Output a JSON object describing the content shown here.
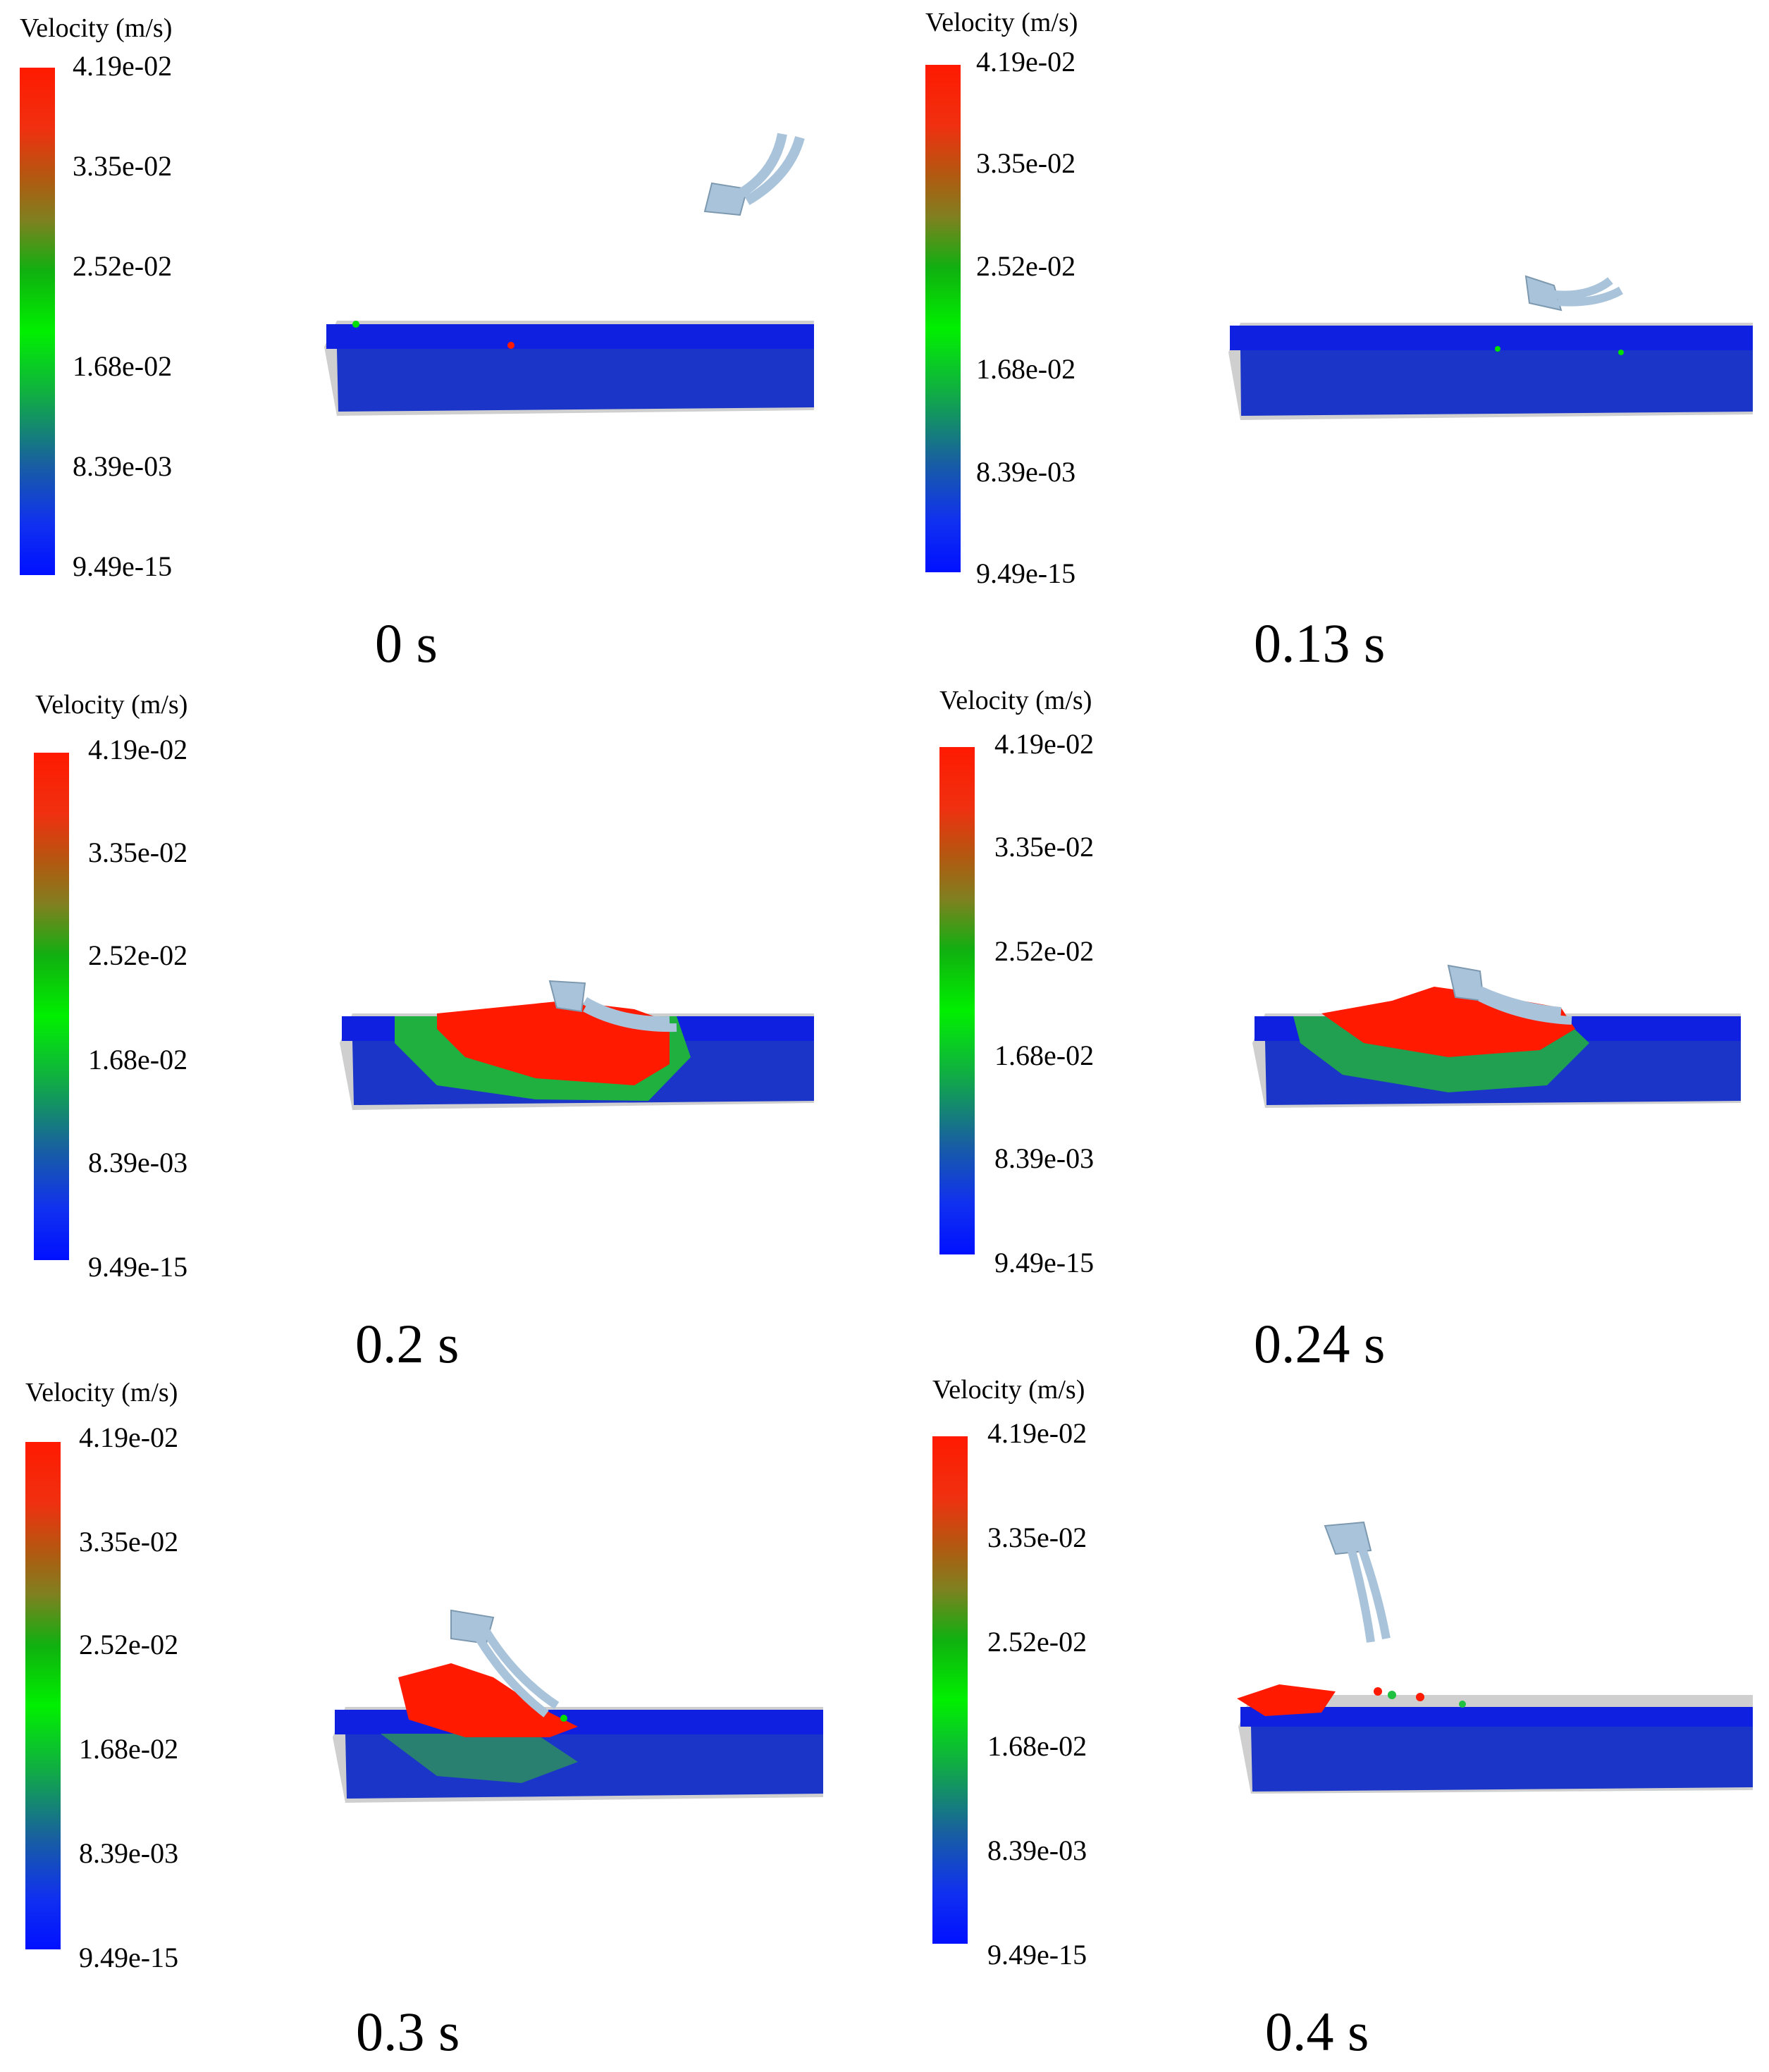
{
  "legend": {
    "title": "Velocity (m/s)",
    "ticks": [
      "4.19e-02",
      "3.35e-02",
      "2.52e-02",
      "1.68e-02",
      "8.39e-03",
      "9.49e-15"
    ]
  },
  "colors": {
    "low": "#0010ff",
    "mid": "#00e000",
    "high": "#ff1a00",
    "tool": "#a9c4da",
    "bin_edge": "#c8c8c8"
  },
  "panels": [
    {
      "time_label": "0 s"
    },
    {
      "time_label": "0.13 s"
    },
    {
      "time_label": "0.2 s"
    },
    {
      "time_label": "0.24 s"
    },
    {
      "time_label": "0.3 s"
    },
    {
      "time_label": "0.4 s"
    }
  ]
}
